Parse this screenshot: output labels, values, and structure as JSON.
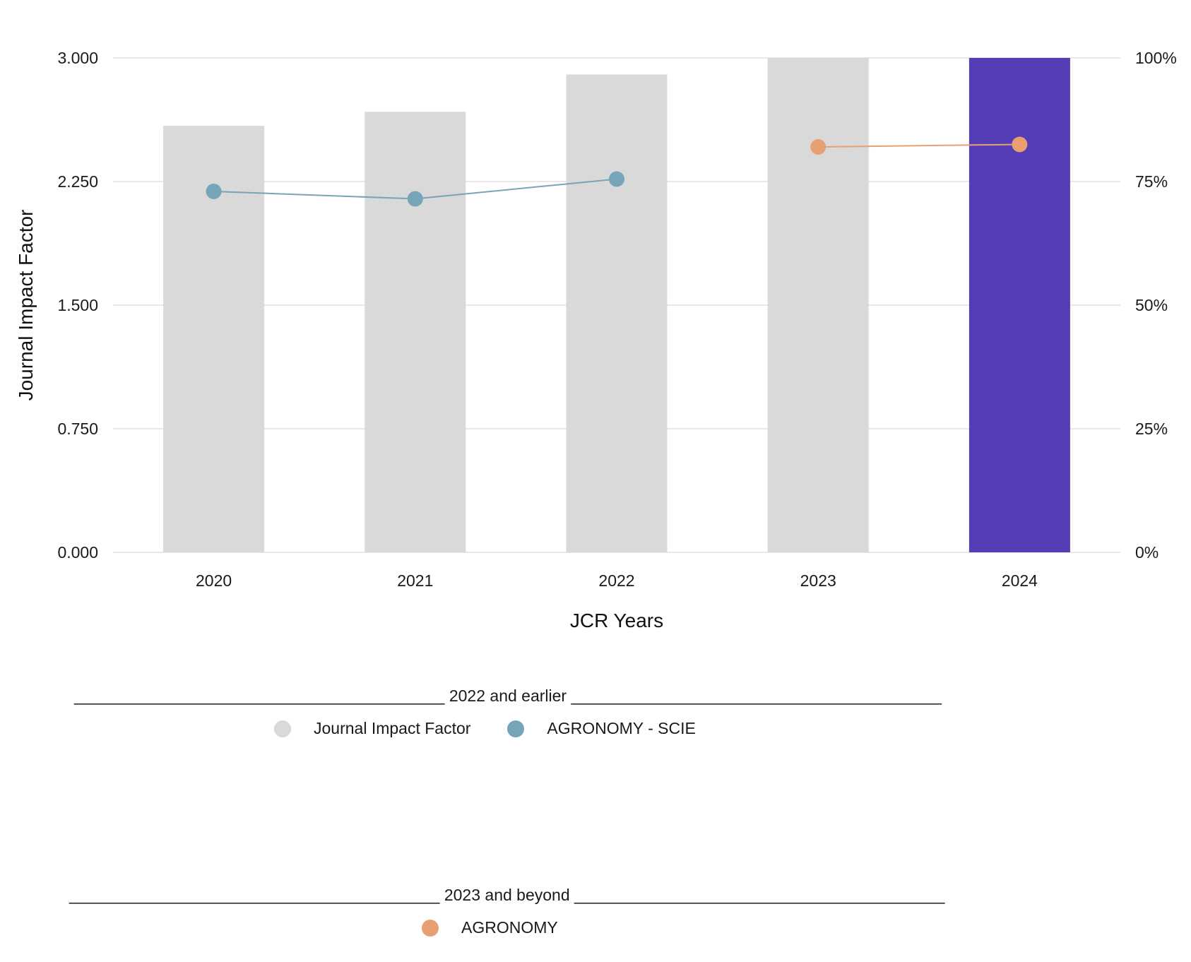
{
  "chart_data": {
    "type": "bar",
    "categories": [
      "2020",
      "2021",
      "2022",
      "2023",
      "2024"
    ],
    "series": [
      {
        "name": "Journal Impact Factor",
        "type": "bar",
        "axis": "left",
        "values": [
          2.588,
          2.673,
          2.9,
          3.0,
          3.0
        ],
        "colors": [
          "#d9d9d9",
          "#d9d9d9",
          "#d9d9d9",
          "#d9d9d9",
          "#553db7"
        ]
      },
      {
        "name": "AGRONOMY - SCIE",
        "type": "line",
        "axis": "right",
        "color": "#76a4b8",
        "x": [
          "2020",
          "2021",
          "2022"
        ],
        "values": [
          73,
          71.5,
          75.5
        ]
      },
      {
        "name": "AGRONOMY",
        "type": "line",
        "axis": "right",
        "color": "#e8a072",
        "x": [
          "2023",
          "2024"
        ],
        "values": [
          82,
          82.5
        ]
      }
    ],
    "xlabel": "JCR Years",
    "ylabel": "Journal Impact Factor",
    "ylim": [
      0,
      3
    ],
    "yticks": [
      "0.000",
      "0.750",
      "1.500",
      "2.250",
      "3.000"
    ],
    "y2lim": [
      0,
      100
    ],
    "y2ticks": [
      "0%",
      "25%",
      "50%",
      "75%",
      "100%"
    ],
    "grid": true,
    "legend_position": "bottom"
  },
  "legend": {
    "group1_title": "_________________________________________ 2022 and earlier _________________________________________",
    "group1_items": [
      "Journal Impact Factor",
      "AGRONOMY - SCIE"
    ],
    "group2_title": "_________________________________________ 2023 and beyond _________________________________________",
    "group2_items": [
      "AGRONOMY"
    ]
  },
  "colors": {
    "bar_default": "#d9d9d9",
    "bar_highlight": "#553db7",
    "scie_line": "#76a4b8",
    "agronomy_line": "#e8a072",
    "grid": "#e0e0e0"
  }
}
